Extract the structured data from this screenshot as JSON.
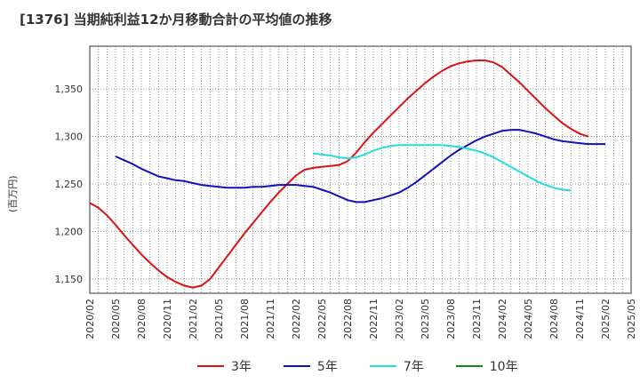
{
  "chart_data": {
    "type": "line",
    "title": "[1376]  当期純利益12か月移動合計の平均値の推移",
    "ylabel": "(百万円)",
    "xlabel": "",
    "ylim": [
      1135,
      1395
    ],
    "yticks": [
      1150,
      1200,
      1250,
      1300,
      1350
    ],
    "ytick_labels": [
      "1,150",
      "1,200",
      "1,250",
      "1,300",
      "1,350"
    ],
    "x_tick_labels": [
      "2020/02",
      "2020/05",
      "2020/08",
      "2020/11",
      "2021/02",
      "2021/05",
      "2021/08",
      "2021/11",
      "2022/02",
      "2022/05",
      "2022/08",
      "2022/11",
      "2023/02",
      "2023/05",
      "2023/08",
      "2023/11",
      "2024/02",
      "2024/05",
      "2024/08",
      "2024/11",
      "2025/02",
      "2025/05"
    ],
    "x_range": [
      "2020/02",
      "2025/05"
    ],
    "grid": true,
    "legend_position": "bottom",
    "series": [
      {
        "name": "3年",
        "color": "#dd1111",
        "start": "2020/02",
        "values": [
          1230,
          1225,
          1217,
          1207,
          1196,
          1186,
          1176,
          1167,
          1159,
          1152,
          1147,
          1143,
          1141,
          1143,
          1150,
          1162,
          1174,
          1186,
          1198,
          1209,
          1220,
          1231,
          1241,
          1250,
          1259,
          1265,
          1267,
          1268,
          1269,
          1270,
          1274,
          1283,
          1294,
          1304,
          1313,
          1322,
          1331,
          1340,
          1348,
          1356,
          1363,
          1369,
          1374,
          1377,
          1379,
          1380,
          1380,
          1378,
          1373,
          1365,
          1357,
          1348,
          1339,
          1330,
          1322,
          1314,
          1308,
          1303,
          1300
        ]
      },
      {
        "name": "5年",
        "color": "#1111bb",
        "start": "2021/06",
        "values_start_month": "2020/05",
        "values": [
          1279,
          1275,
          1271,
          1266,
          1262,
          1258,
          1256,
          1254,
          1253,
          1251,
          1249,
          1248,
          1247,
          1246,
          1246,
          1246,
          1247,
          1247,
          1248,
          1249,
          1249,
          1249,
          1248,
          1247,
          1244,
          1241,
          1237,
          1233,
          1231,
          1231,
          1233,
          1235,
          1238,
          1241,
          1246,
          1252,
          1259,
          1266,
          1273,
          1280,
          1286,
          1291,
          1296,
          1300,
          1303,
          1306,
          1307,
          1307,
          1305,
          1303,
          1300,
          1297,
          1295,
          1294,
          1293,
          1292,
          1292,
          1292
        ]
      },
      {
        "name": "7年",
        "color": "#22dddd",
        "values_start_month": "2022/04",
        "values": [
          1282,
          1281,
          1280,
          1278,
          1277,
          1278,
          1281,
          1285,
          1288,
          1290,
          1291,
          1291,
          1291,
          1291,
          1291,
          1291,
          1290,
          1289,
          1287,
          1285,
          1282,
          1278,
          1273,
          1268,
          1263,
          1258,
          1253,
          1249,
          1246,
          1244,
          1243
        ]
      },
      {
        "name": "10年",
        "color": "#118811",
        "values_start_month": null,
        "values": []
      }
    ]
  },
  "legend": {
    "items": [
      {
        "label": "3年",
        "color": "#dd1111"
      },
      {
        "label": "5年",
        "color": "#1111bb"
      },
      {
        "label": "7年",
        "color": "#22dddd"
      },
      {
        "label": "10年",
        "color": "#118811"
      }
    ]
  }
}
